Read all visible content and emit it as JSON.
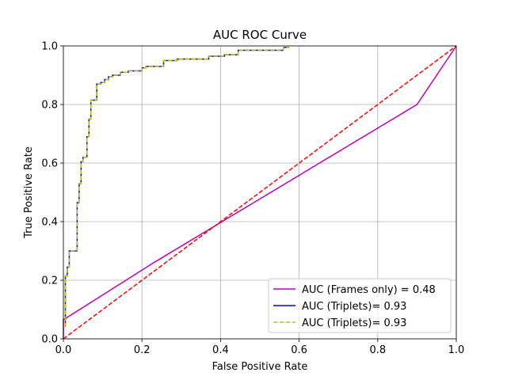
{
  "chart_data": {
    "type": "line",
    "title": "AUC ROC Curve",
    "xlabel": "False Positive Rate",
    "ylabel": "True Positive Rate",
    "xlim": [
      0,
      1
    ],
    "ylim": [
      0,
      1
    ],
    "grid": true,
    "legend_position": "lower-right",
    "x_ticks": [
      "0.0",
      "0.2",
      "0.4",
      "0.6",
      "0.8",
      "1.0"
    ],
    "y_ticks": [
      "0.0",
      "0.2",
      "0.4",
      "0.6",
      "0.8",
      "1.0"
    ],
    "series": [
      {
        "name": "AUC (Frames only) = 0.48",
        "color": "#bf00bf",
        "style": "solid",
        "x": [
          0,
          0,
          0.23,
          0.9,
          1
        ],
        "y": [
          0,
          0.065,
          0.26,
          0.8,
          1
        ]
      },
      {
        "name": "AUC (Triplets)= 0.93",
        "color": "#0000ff",
        "style": "solid",
        "x": [
          0.005,
          0.005,
          0.01,
          0.01,
          0.015,
          0.015,
          0.02,
          0.02,
          0.035,
          0.035,
          0.04,
          0.04,
          0.045,
          0.045,
          0.05,
          0.05,
          0.06,
          0.06,
          0.065,
          0.065,
          0.07,
          0.07,
          0.075,
          0.075,
          0.085,
          0.085,
          0.095,
          0.095,
          0.105,
          0.105,
          0.115,
          0.115,
          0.125,
          0.125,
          0.145,
          0.145,
          0.165,
          0.165,
          0.2,
          0.2,
          0.21,
          0.21,
          0.255,
          0.255,
          0.29,
          0.29,
          0.37,
          0.37,
          0.41,
          0.41,
          0.445,
          0.445,
          0.56,
          0.56,
          0.575
        ],
        "y": [
          0.04,
          0.215,
          0.215,
          0.245,
          0.245,
          0.3,
          0.3,
          0.3,
          0.3,
          0.465,
          0.465,
          0.53,
          0.53,
          0.605,
          0.605,
          0.62,
          0.62,
          0.69,
          0.69,
          0.75,
          0.75,
          0.815,
          0.815,
          0.815,
          0.815,
          0.87,
          0.87,
          0.875,
          0.875,
          0.885,
          0.885,
          0.895,
          0.895,
          0.9,
          0.9,
          0.91,
          0.91,
          0.915,
          0.915,
          0.925,
          0.925,
          0.93,
          0.93,
          0.95,
          0.95,
          0.955,
          0.955,
          0.965,
          0.965,
          0.97,
          0.97,
          0.985,
          0.985,
          0.995,
          0.995
        ]
      },
      {
        "name": "AUC (Triplets)= 0.93",
        "color": "#bfbf00",
        "style": "dashed",
        "x": [
          0.005,
          0.005,
          0.01,
          0.01,
          0.015,
          0.015,
          0.02,
          0.02,
          0.035,
          0.035,
          0.04,
          0.04,
          0.045,
          0.045,
          0.05,
          0.05,
          0.06,
          0.06,
          0.065,
          0.065,
          0.07,
          0.07,
          0.075,
          0.075,
          0.085,
          0.085,
          0.095,
          0.095,
          0.105,
          0.105,
          0.115,
          0.115,
          0.125,
          0.125,
          0.145,
          0.145,
          0.165,
          0.165,
          0.2,
          0.2,
          0.21,
          0.21,
          0.255,
          0.255,
          0.29,
          0.29,
          0.37,
          0.37,
          0.41,
          0.41,
          0.445,
          0.445,
          0.56,
          0.56,
          0.575
        ],
        "y": [
          0.04,
          0.215,
          0.215,
          0.245,
          0.245,
          0.3,
          0.3,
          0.3,
          0.3,
          0.465,
          0.465,
          0.53,
          0.53,
          0.605,
          0.605,
          0.62,
          0.62,
          0.69,
          0.69,
          0.75,
          0.75,
          0.815,
          0.815,
          0.815,
          0.815,
          0.87,
          0.87,
          0.875,
          0.875,
          0.885,
          0.885,
          0.895,
          0.895,
          0.9,
          0.9,
          0.91,
          0.91,
          0.915,
          0.915,
          0.925,
          0.925,
          0.93,
          0.93,
          0.95,
          0.95,
          0.955,
          0.955,
          0.965,
          0.965,
          0.97,
          0.97,
          0.985,
          0.985,
          0.995,
          0.995
        ]
      }
    ],
    "reference_line": {
      "color": "#ff0000",
      "style": "dashed",
      "x": [
        0,
        1
      ],
      "y": [
        0,
        1
      ]
    }
  }
}
